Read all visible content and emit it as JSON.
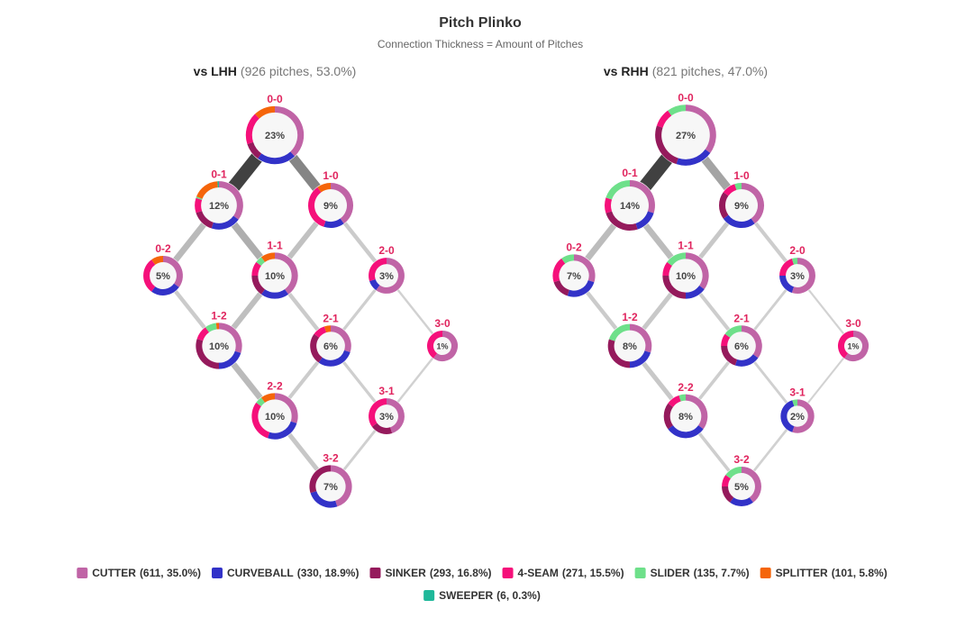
{
  "chart_data": {
    "type": "plinko",
    "title": "Pitch Plinko",
    "subtitle": "Connection Thickness = Amount of Pitches",
    "count_color": "#e0245e",
    "legend": [
      {
        "name": "CUTTER",
        "label": "(611, 35.0%)",
        "color": "#c064a6"
      },
      {
        "name": "CURVEBALL",
        "label": "(330, 18.9%)",
        "color": "#3232c8"
      },
      {
        "name": "SINKER",
        "label": "(293, 16.8%)",
        "color": "#951a5c"
      },
      {
        "name": "4-SEAM",
        "label": "(271, 15.5%)",
        "color": "#f5107a"
      },
      {
        "name": "SLIDER",
        "label": "(135, 7.7%)",
        "color": "#6ee08a"
      },
      {
        "name": "SPLITTER",
        "label": "(101, 5.8%)",
        "color": "#f5650a"
      },
      {
        "name": "SWEEPER",
        "label": "(6, 0.3%)",
        "color": "#1fb89a"
      }
    ],
    "panels": [
      {
        "title": "vs LHH",
        "subtitle": "(926 pitches, 53.0%)",
        "nodes": [
          {
            "label": "0-0",
            "value": 23,
            "value_label": "23%",
            "mix": [
              38,
              22,
              10,
              18,
              0,
              12,
              0
            ]
          },
          {
            "label": "0-1",
            "value": 12,
            "value_label": "12%",
            "mix": [
              35,
              20,
              15,
              10,
              1,
              18,
              1
            ]
          },
          {
            "label": "1-0",
            "value": 9,
            "value_label": "9%",
            "mix": [
              40,
              15,
              0,
              35,
              0,
              10,
              0
            ]
          },
          {
            "label": "0-2",
            "value": 5,
            "value_label": "5%",
            "mix": [
              35,
              25,
              0,
              30,
              0,
              10,
              0
            ]
          },
          {
            "label": "1-1",
            "value": 10,
            "value_label": "10%",
            "mix": [
              40,
              20,
              15,
              10,
              5,
              10,
              0
            ]
          },
          {
            "label": "2-0",
            "value": 3,
            "value_label": "3%",
            "mix": [
              60,
              10,
              0,
              30,
              0,
              0,
              0
            ]
          },
          {
            "label": "1-2",
            "value": 10,
            "value_label": "10%",
            "mix": [
              30,
              20,
              30,
              10,
              8,
              2,
              0
            ]
          },
          {
            "label": "2-1",
            "value": 6,
            "value_label": "6%",
            "mix": [
              30,
              30,
              25,
              10,
              0,
              5,
              0
            ]
          },
          {
            "label": "3-0",
            "value": 1,
            "value_label": "1%",
            "mix": [
              60,
              0,
              0,
              40,
              0,
              0,
              0
            ]
          },
          {
            "label": "2-2",
            "value": 10,
            "value_label": "10%",
            "mix": [
              30,
              25,
              0,
              30,
              5,
              10,
              0
            ]
          },
          {
            "label": "3-1",
            "value": 3,
            "value_label": "3%",
            "mix": [
              45,
              0,
              20,
              35,
              0,
              0,
              0
            ]
          },
          {
            "label": "3-2",
            "value": 7,
            "value_label": "7%",
            "mix": [
              45,
              25,
              30,
              0,
              0,
              0,
              0
            ]
          }
        ],
        "links": [
          {
            "from": "0-0",
            "to": "0-1",
            "value": 110
          },
          {
            "from": "0-0",
            "to": "1-0",
            "value": 80
          },
          {
            "from": "0-1",
            "to": "0-2",
            "value": 45
          },
          {
            "from": "0-1",
            "to": "1-1",
            "value": 55
          },
          {
            "from": "1-0",
            "to": "1-1",
            "value": 38
          },
          {
            "from": "1-0",
            "to": "2-0",
            "value": 25
          },
          {
            "from": "0-2",
            "to": "1-2",
            "value": 25
          },
          {
            "from": "1-1",
            "to": "1-2",
            "value": 40
          },
          {
            "from": "1-1",
            "to": "2-1",
            "value": 25
          },
          {
            "from": "2-0",
            "to": "2-1",
            "value": 15
          },
          {
            "from": "2-0",
            "to": "3-0",
            "value": 8
          },
          {
            "from": "1-2",
            "to": "2-2",
            "value": 45
          },
          {
            "from": "2-1",
            "to": "2-2",
            "value": 22
          },
          {
            "from": "2-1",
            "to": "3-1",
            "value": 15
          },
          {
            "from": "3-0",
            "to": "3-1",
            "value": 8
          },
          {
            "from": "2-2",
            "to": "3-2",
            "value": 30
          },
          {
            "from": "3-1",
            "to": "3-2",
            "value": 12
          }
        ]
      },
      {
        "title": "vs RHH",
        "subtitle": "(821 pitches, 47.0%)",
        "nodes": [
          {
            "label": "0-0",
            "value": 27,
            "value_label": "27%",
            "mix": [
              35,
              20,
              25,
              10,
              10,
              0,
              0
            ]
          },
          {
            "label": "0-1",
            "value": 14,
            "value_label": "14%",
            "mix": [
              30,
              15,
              25,
              10,
              20,
              0,
              0
            ]
          },
          {
            "label": "1-0",
            "value": 9,
            "value_label": "9%",
            "mix": [
              40,
              25,
              20,
              10,
              5,
              0,
              0
            ]
          },
          {
            "label": "0-2",
            "value": 7,
            "value_label": "7%",
            "mix": [
              30,
              25,
              15,
              20,
              10,
              0,
              0
            ]
          },
          {
            "label": "1-1",
            "value": 10,
            "value_label": "10%",
            "mix": [
              35,
              15,
              25,
              10,
              15,
              0,
              0
            ]
          },
          {
            "label": "2-0",
            "value": 3,
            "value_label": "3%",
            "mix": [
              55,
              20,
              0,
              20,
              5,
              0,
              0
            ]
          },
          {
            "label": "1-2",
            "value": 8,
            "value_label": "8%",
            "mix": [
              30,
              20,
              30,
              0,
              20,
              0,
              0
            ]
          },
          {
            "label": "2-1",
            "value": 6,
            "value_label": "6%",
            "mix": [
              35,
              20,
              20,
              10,
              15,
              0,
              0
            ]
          },
          {
            "label": "3-0",
            "value": 1,
            "value_label": "1%",
            "mix": [
              60,
              0,
              0,
              40,
              0,
              0,
              0
            ]
          },
          {
            "label": "2-2",
            "value": 8,
            "value_label": "8%",
            "mix": [
              35,
              30,
              20,
              10,
              5,
              0,
              0
            ]
          },
          {
            "label": "3-1",
            "value": 2,
            "value_label": "2%",
            "mix": [
              55,
              40,
              0,
              0,
              5,
              0,
              0
            ]
          },
          {
            "label": "3-2",
            "value": 5,
            "value_label": "5%",
            "mix": [
              40,
              20,
              15,
              10,
              15,
              0,
              0
            ]
          }
        ],
        "links": [
          {
            "from": "0-0",
            "to": "0-1",
            "value": 115
          },
          {
            "from": "0-0",
            "to": "1-0",
            "value": 65
          },
          {
            "from": "0-1",
            "to": "0-2",
            "value": 45
          },
          {
            "from": "0-1",
            "to": "1-1",
            "value": 45
          },
          {
            "from": "1-0",
            "to": "1-1",
            "value": 30
          },
          {
            "from": "1-0",
            "to": "2-0",
            "value": 22
          },
          {
            "from": "0-2",
            "to": "1-2",
            "value": 25
          },
          {
            "from": "1-1",
            "to": "1-2",
            "value": 30
          },
          {
            "from": "1-1",
            "to": "2-1",
            "value": 22
          },
          {
            "from": "2-0",
            "to": "2-1",
            "value": 12
          },
          {
            "from": "2-0",
            "to": "3-0",
            "value": 6
          },
          {
            "from": "1-2",
            "to": "2-2",
            "value": 30
          },
          {
            "from": "2-1",
            "to": "2-2",
            "value": 18
          },
          {
            "from": "2-1",
            "to": "3-1",
            "value": 12
          },
          {
            "from": "3-0",
            "to": "3-1",
            "value": 5
          },
          {
            "from": "2-2",
            "to": "3-2",
            "value": 18
          },
          {
            "from": "3-1",
            "to": "3-2",
            "value": 10
          }
        ]
      }
    ]
  }
}
